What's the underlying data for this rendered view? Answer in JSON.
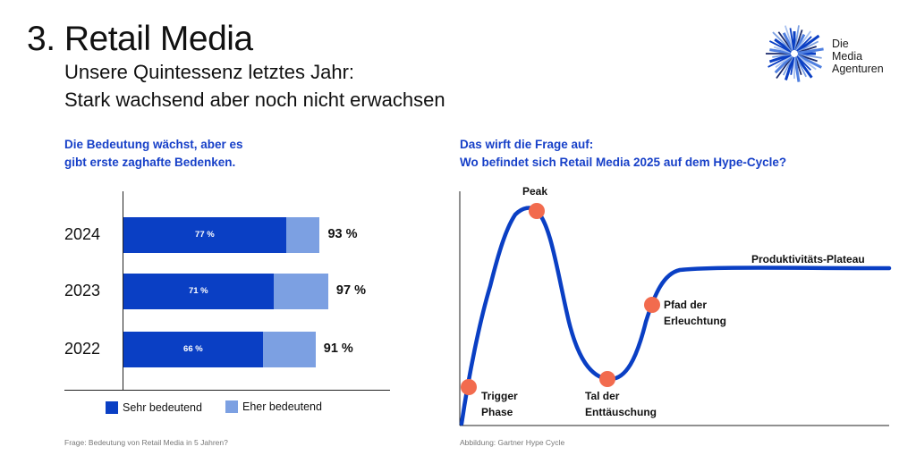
{
  "header": {
    "title": "3. Retail Media",
    "subtitle_line1": "Unsere Quintessenz letztes Jahr:",
    "subtitle_line2": "Stark wachsend aber noch nicht erwachsen"
  },
  "logo": {
    "line1": "Die",
    "line2": "Media",
    "line3": "Agenturen",
    "icon": "starburst-logo-icon"
  },
  "colors": {
    "accent_blue": "#1740c8",
    "dark_blue": "#0a3fc4",
    "light_blue": "#7ca0e2",
    "marker": "#f26b4e"
  },
  "left": {
    "heading_line1": "Die Bedeutung wächst, aber es",
    "heading_line2": "gibt erste zaghafte Bedenken.",
    "footnote": "Frage: Bedeutung von Retail Media in 5 Jahren?",
    "legend": {
      "sehr": "Sehr bedeutend",
      "eher": "Eher bedeutend"
    }
  },
  "right": {
    "heading_line1": "Das wirft die Frage auf:",
    "heading_line2": "Wo befindet sich Retail Media 2025 auf dem Hype-Cycle?",
    "footnote": "Abbildung: Gartner Hype Cycle",
    "labels": {
      "peak": "Peak",
      "trigger_line1": "Trigger",
      "trigger_line2": "Phase",
      "tal_line1": "Tal der",
      "tal_line2": "Enttäuschung",
      "pfad_line1": "Pfad der",
      "pfad_line2": "Erleuchtung",
      "plateau": "Produktivitäts-Plateau"
    }
  },
  "chart_data": {
    "type": "bar",
    "orientation": "horizontal",
    "stacked": true,
    "categories": [
      "2024",
      "2023",
      "2022"
    ],
    "series": [
      {
        "name": "Sehr bedeutend",
        "values": [
          77,
          71,
          66
        ],
        "labels": [
          "77 %",
          "71 %",
          "66 %"
        ],
        "color": "#0a3fc4"
      },
      {
        "name": "Eher bedeutend",
        "values": [
          16,
          26,
          25
        ],
        "color": "#7ca0e2"
      }
    ],
    "totals": [
      "93 %",
      "97 %",
      "91 %"
    ],
    "xlim": [
      0,
      100
    ]
  }
}
